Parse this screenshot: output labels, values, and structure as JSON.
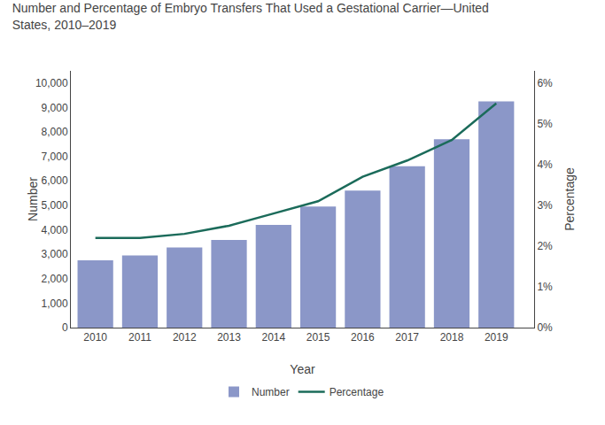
{
  "chart_data": {
    "type": "bar",
    "title": "Number and Percentage of Embryo Transfers That Used a Gestational Carrier—United\nStates, 2010–2019",
    "xlabel": "Year",
    "ylabel": "Number",
    "y2label": "Percentage",
    "x": [
      2010,
      2011,
      2012,
      2013,
      2014,
      2015,
      2016,
      2017,
      2018,
      2019
    ],
    "xlim": [
      2009.45,
      2019.85
    ],
    "xticks": [
      2010,
      2011,
      2012,
      2013,
      2014,
      2015,
      2016,
      2017,
      2018,
      2019
    ],
    "ylim": [
      0,
      10500
    ],
    "yticks": [
      0,
      {
        "value": 1000,
        "label": "1,000"
      },
      {
        "value": 2000,
        "label": "2,000"
      },
      {
        "value": 3000,
        "label": "3,000"
      },
      {
        "value": 4000,
        "label": "4,000"
      },
      {
        "value": 5000,
        "label": "5,000"
      },
      {
        "value": 6000,
        "label": "6,000"
      },
      {
        "value": 7000,
        "label": "7,000"
      },
      {
        "value": 8000,
        "label": "8,000"
      },
      {
        "value": 9000,
        "label": "9,000"
      },
      {
        "value": 10000,
        "label": "10,000"
      }
    ],
    "y2lim": [
      0,
      6.3
    ],
    "y2ticks": [
      {
        "value": 0,
        "label": "0%"
      },
      {
        "value": 1,
        "label": "1%"
      },
      {
        "value": 2,
        "label": "2%"
      },
      {
        "value": 3,
        "label": "3%"
      },
      {
        "value": 4,
        "label": "4%"
      },
      {
        "value": 5,
        "label": "5%"
      },
      {
        "value": 6,
        "label": "6%"
      }
    ],
    "grid": false,
    "legend": "bottom",
    "series": [
      {
        "name": "Number",
        "type": "bar",
        "color": "#8B97C8",
        "values": [
          2750,
          2950,
          3280,
          3580,
          4200,
          4950,
          5600,
          6600,
          7700,
          9250
        ]
      },
      {
        "name": "Percentage",
        "type": "line",
        "axis": "y2",
        "color": "#1B6B5A",
        "values": [
          2.2,
          2.2,
          2.3,
          2.5,
          2.8,
          3.1,
          3.7,
          4.1,
          4.6,
          5.5
        ]
      }
    ]
  }
}
